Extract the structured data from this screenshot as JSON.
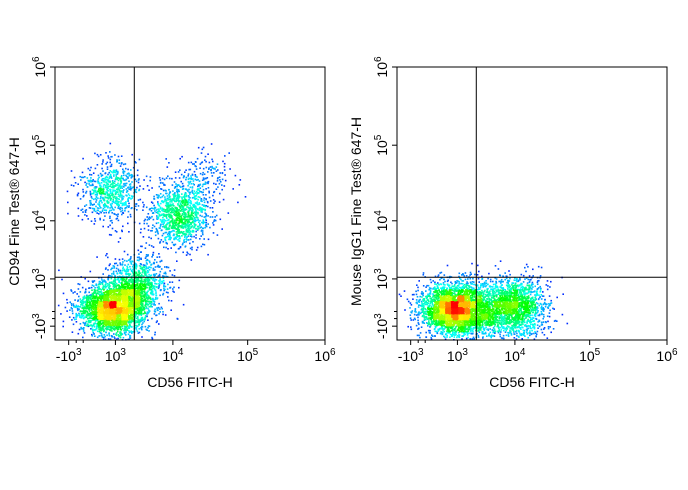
{
  "chart_data": [
    {
      "type": "scatter",
      "subtype": "flow-cytometry-density-plot",
      "title": "",
      "xlabel": "CD56 FITC-H",
      "ylabel": "CD94 Fine Test® 647-H",
      "x_scale": "biexponential",
      "y_scale": "biexponential",
      "xlim": [
        -2000,
        1000000
      ],
      "ylim": [
        -2000,
        1000000
      ],
      "x_ticks": [
        {
          "value": -1000,
          "base": "-10",
          "exp": "3"
        },
        {
          "value": 1000,
          "base": "10",
          "exp": "3"
        },
        {
          "value": 10000,
          "base": "10",
          "exp": "4"
        },
        {
          "value": 100000,
          "base": "10",
          "exp": "5"
        },
        {
          "value": 1000000,
          "base": "10",
          "exp": "6"
        }
      ],
      "y_ticks": [
        {
          "value": -1000,
          "base": "-10",
          "exp": "3"
        },
        {
          "value": 1000,
          "base": "10",
          "exp": "3"
        },
        {
          "value": 10000,
          "base": "10",
          "exp": "4"
        },
        {
          "value": 100000,
          "base": "10",
          "exp": "5"
        },
        {
          "value": 1000000,
          "base": "10",
          "exp": "6"
        }
      ],
      "quadrant_gate": {
        "x": 2500,
        "y": 1100
      },
      "color_scale": [
        "#0000ff",
        "#00ffff",
        "#00ff00",
        "#ffff00",
        "#ff0000"
      ],
      "populations": [
        {
          "x": 800,
          "y": -200,
          "count": 2600
        },
        {
          "x": 12000,
          "y": 12000,
          "count": 1100
        },
        {
          "x": 700,
          "y": 25000,
          "count": 700
        },
        {
          "x": 2500,
          "y": 600,
          "count": 1100
        },
        {
          "x": 25000,
          "y": 35000,
          "count": 200
        }
      ]
    },
    {
      "type": "scatter",
      "subtype": "flow-cytometry-density-plot",
      "title": "",
      "xlabel": "CD56 FITC-H",
      "ylabel": "Mouse IgG1 Fine Test® 647-H",
      "x_scale": "biexponential",
      "y_scale": "biexponential",
      "xlim": [
        -2000,
        1000000
      ],
      "ylim": [
        -2000,
        1000000
      ],
      "x_ticks": [
        {
          "value": -1000,
          "base": "-10",
          "exp": "3"
        },
        {
          "value": 1000,
          "base": "10",
          "exp": "3"
        },
        {
          "value": 10000,
          "base": "10",
          "exp": "4"
        },
        {
          "value": 100000,
          "base": "10",
          "exp": "5"
        },
        {
          "value": 1000000,
          "base": "10",
          "exp": "6"
        }
      ],
      "y_ticks": [
        {
          "value": -1000,
          "base": "-10",
          "exp": "3"
        },
        {
          "value": 1000,
          "base": "10",
          "exp": "3"
        },
        {
          "value": 10000,
          "base": "10",
          "exp": "4"
        },
        {
          "value": 100000,
          "base": "10",
          "exp": "5"
        },
        {
          "value": 1000000,
          "base": "10",
          "exp": "6"
        }
      ],
      "quadrant_gate": {
        "x": 2500,
        "y": 1100
      },
      "color_scale": [
        "#0000ff",
        "#00ffff",
        "#00ff00",
        "#ffff00",
        "#ff0000"
      ],
      "populations": [
        {
          "x": 800,
          "y": -200,
          "count": 3000
        },
        {
          "x": 10000,
          "y": -150,
          "count": 1500
        },
        {
          "x": 3500,
          "y": -150,
          "count": 600
        }
      ]
    }
  ]
}
